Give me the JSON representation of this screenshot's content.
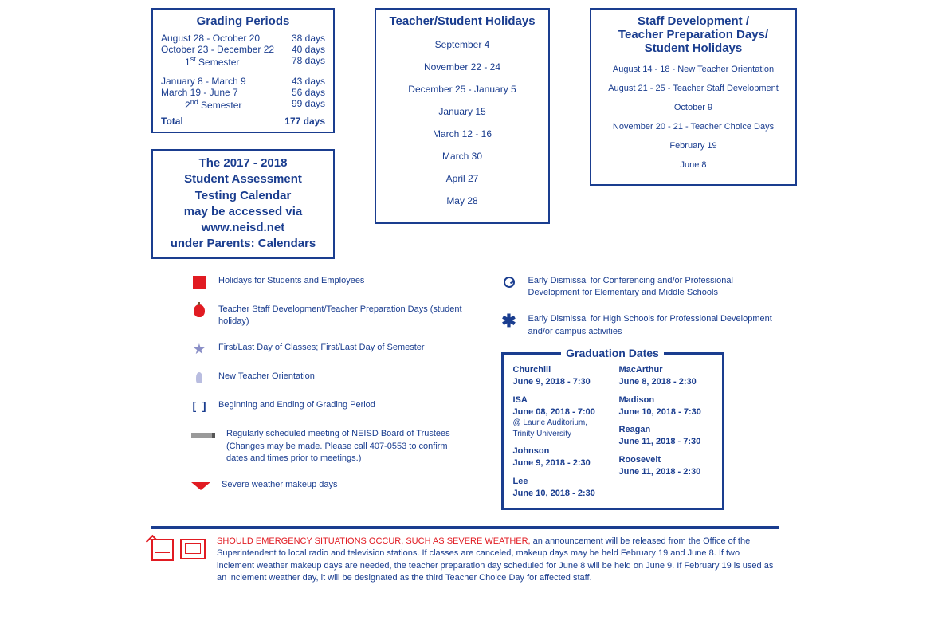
{
  "colors": {
    "primary": "#1a3d8f",
    "accent": "#e11b22",
    "bg": "#ffffff",
    "muted": "#8a8fc7"
  },
  "grading": {
    "title": "Grading Periods",
    "rows1": [
      {
        "label": "August 28 - October 20",
        "days": "38 days"
      },
      {
        "label": "October 23 - December 22",
        "days": "40 days"
      }
    ],
    "sem1": {
      "label": "1",
      "sup": "st",
      "rest": " Semester",
      "days": "78 days"
    },
    "rows2": [
      {
        "label": "January 8 - March 9",
        "days": "43 days"
      },
      {
        "label": "March 19 - June 7",
        "days": "56 days"
      }
    ],
    "sem2": {
      "label": "2",
      "sup": "nd",
      "rest": " Semester",
      "days": "99 days"
    },
    "total": {
      "label": "Total",
      "days": "177 days"
    }
  },
  "testing": {
    "l1": "The 2017 - 2018",
    "l2": "Student Assessment",
    "l3": "Testing Calendar",
    "l4": "may be accessed via",
    "l5": "www.neisd.net",
    "l6": "under Parents: Calendars"
  },
  "holidays": {
    "title": "Teacher/Student Holidays",
    "items": [
      "September 4",
      "November 22 - 24",
      "December 25 - January 5",
      "January 15",
      "March 12 - 16",
      "March 30",
      "April 27",
      "May 28"
    ]
  },
  "staff": {
    "title_l1": "Staff Development /",
    "title_l2": "Teacher Preparation Days/",
    "title_l3": "Student Holidays",
    "items": [
      "August 14 - 18 - New Teacher Orientation",
      "August 21 - 25 - Teacher Staff Development",
      "October 9",
      "November 20 - 21 - Teacher Choice Days",
      "February 19",
      "June 8"
    ]
  },
  "legend_left": [
    "Holidays for Students and Employees",
    "Teacher Staff Development/Teacher Preparation Days (student holiday)",
    "First/Last Day of Classes; First/Last Day of Semester",
    "New Teacher Orientation",
    "Beginning and Ending of Grading Period",
    "Regularly scheduled meeting of NEISD Board of Trustees (Changes may be made. Please call 407-0553 to confirm dates and times prior to meetings.)",
    "Severe weather makeup days"
  ],
  "legend_right": [
    "Early Dismissal for Conferencing and/or Professional Development for Elementary and Middle Schools",
    "Early Dismissal for High Schools for Professional Development and/or campus activities"
  ],
  "grad": {
    "title": "Graduation Dates",
    "left": [
      {
        "name": "Churchill",
        "dt": "June 9, 2018 - 7:30"
      },
      {
        "name": "ISA",
        "dt": "June 08, 2018 - 7:00",
        "sub": "@  Laurie Auditorium, Trinity University"
      },
      {
        "name": "Johnson",
        "dt": "June 9, 2018 - 2:30"
      },
      {
        "name": "Lee",
        "dt": "June 10, 2018 - 2:30"
      }
    ],
    "right": [
      {
        "name": "MacArthur",
        "dt": "June 8, 2018 - 2:30"
      },
      {
        "name": "Madison",
        "dt": "June 10, 2018 - 7:30"
      },
      {
        "name": "Reagan",
        "dt": "June 11, 2018 - 7:30"
      },
      {
        "name": "Roosevelt",
        "dt": "June 11, 2018 - 2:30"
      }
    ]
  },
  "emergency": {
    "red": "SHOULD EMERGENCY SITUATIONS OCCUR, SUCH AS SEVERE WEATHER,",
    "rest": " an announcement will be released from the Office of the Superintendent to local radio and television stations. If classes are canceled, makeup days may be held February 19 and June 8. If two inclement weather makeup days are needed, the teacher preparation day scheduled for June 8 will be held on June 9. If February 19 is used as an inclement weather day, it will be designated as the third Teacher Choice Day for affected staff."
  }
}
